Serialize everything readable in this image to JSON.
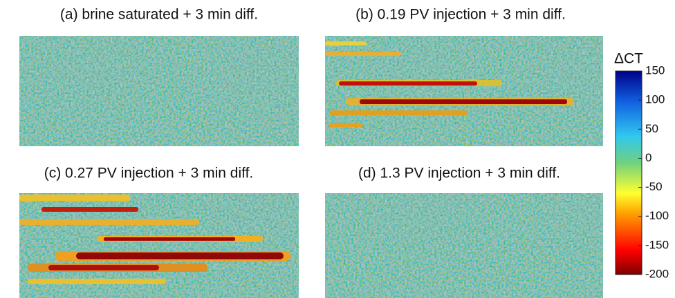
{
  "chart_data": [
    {
      "type": "heatmap",
      "title": "(a) brine saturated + 3 min diff."
    },
    {
      "type": "heatmap",
      "title": "(b) 0.19 PV injection + 3 min diff."
    },
    {
      "type": "heatmap",
      "title": "(c) 0.27 PV injection + 3 min diff."
    },
    {
      "type": "heatmap",
      "title": "(d) 1.3 PV injection + 3 min diff."
    }
  ],
  "colorbar": {
    "label": "ΔCT",
    "lim": [
      -200,
      150
    ],
    "ticks": [
      150,
      100,
      50,
      0,
      -50,
      -100,
      -150,
      -200
    ]
  }
}
